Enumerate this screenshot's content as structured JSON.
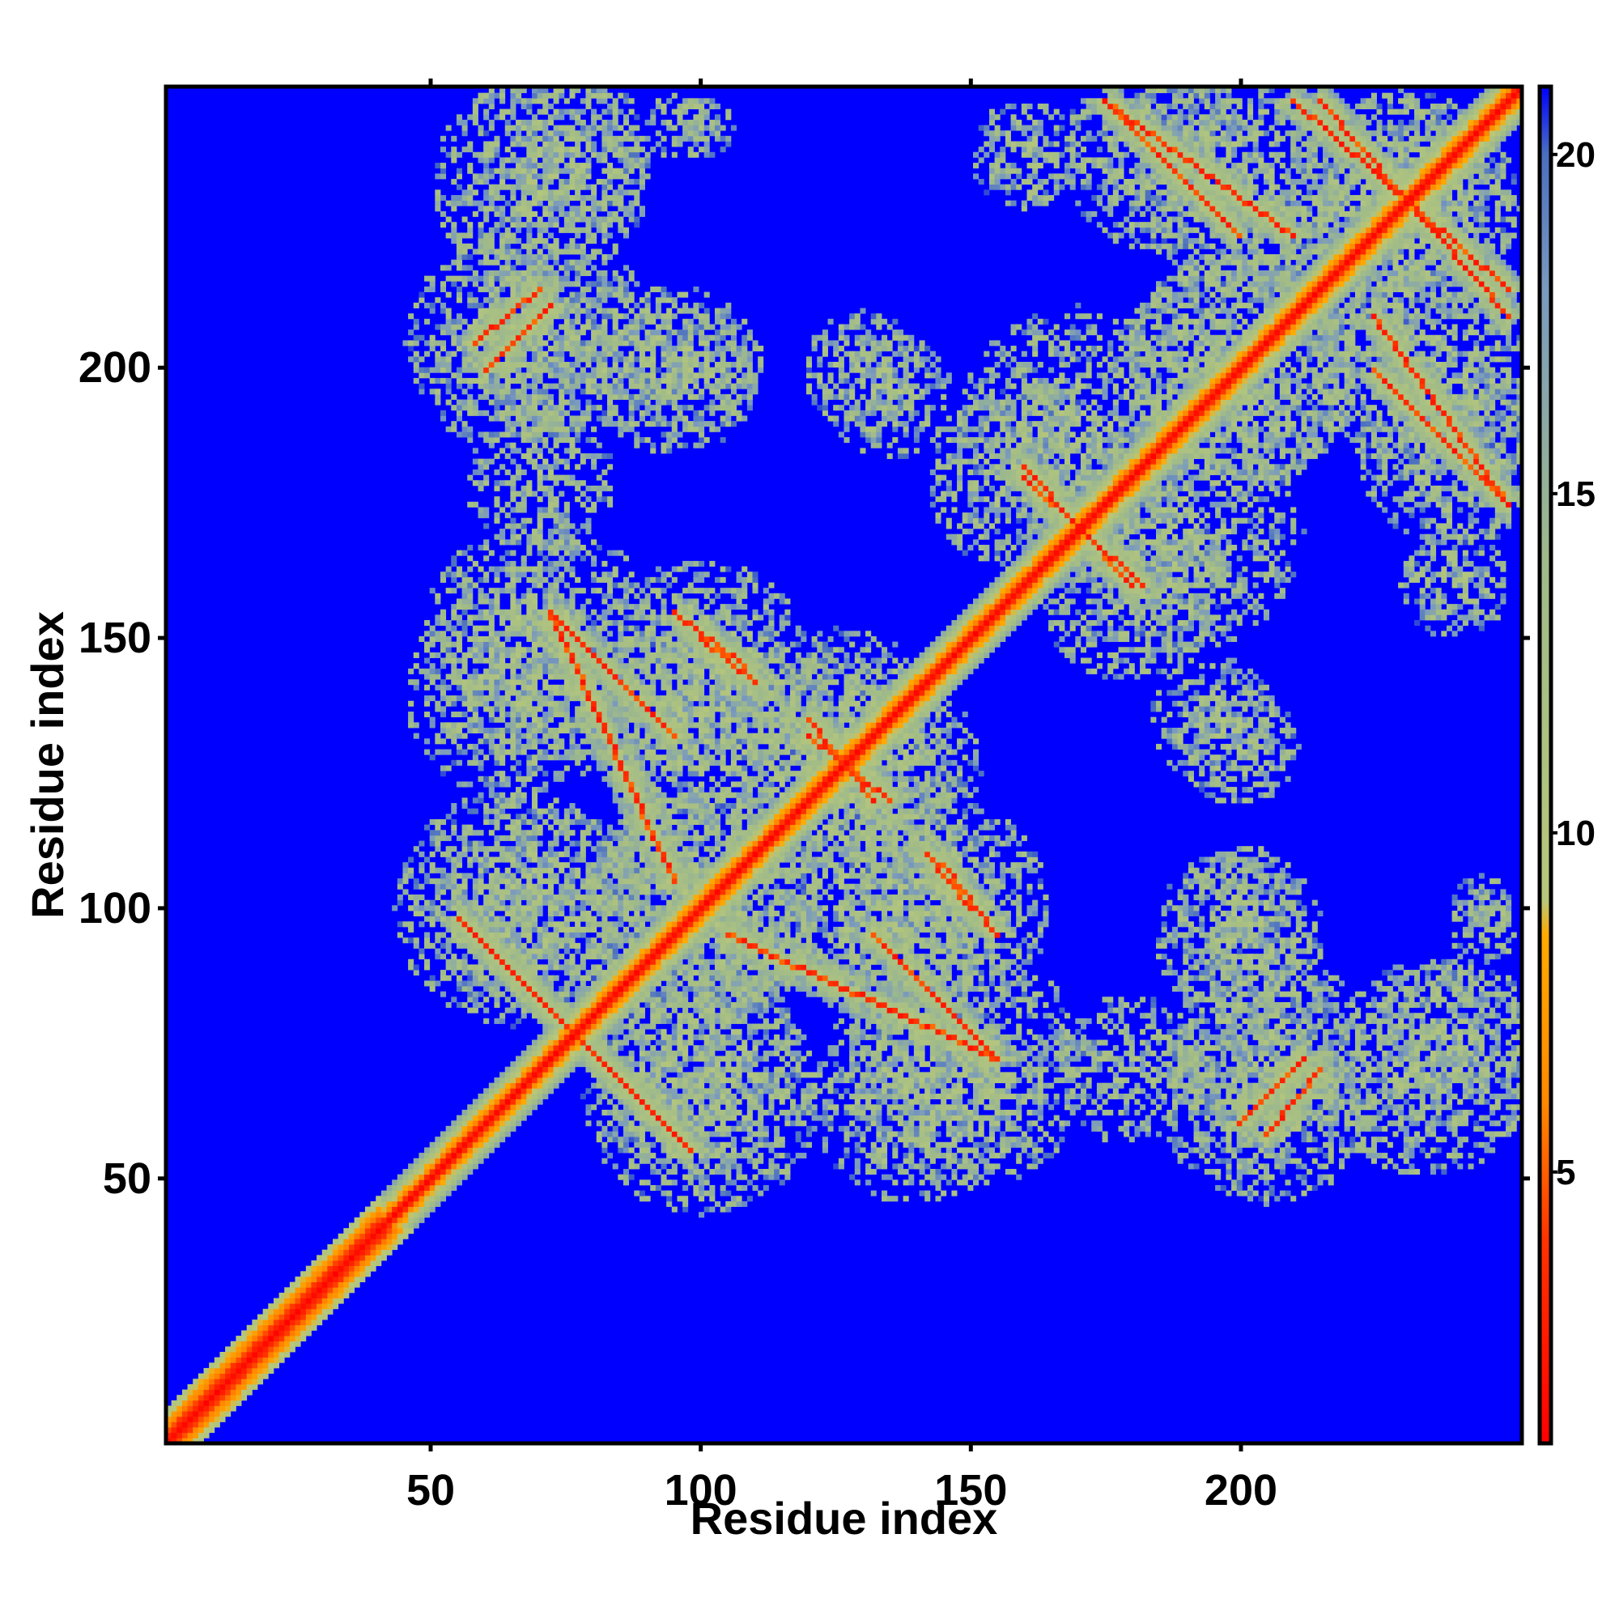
{
  "chart_data": {
    "type": "heatmap",
    "title": "",
    "xlabel": "Residue index",
    "ylabel": "Residue index",
    "n_residues": 252,
    "xlim": [
      1,
      252
    ],
    "ylim": [
      1,
      252
    ],
    "xticks": [
      50,
      100,
      150,
      200
    ],
    "yticks": [
      50,
      100,
      150,
      200
    ],
    "colorbar": {
      "range": [
        1,
        21
      ],
      "ticks": [
        5,
        10,
        15,
        20
      ],
      "stops": [
        {
          "value": 1,
          "color": "#ff0000"
        },
        {
          "value": 4,
          "color": "#ff3300"
        },
        {
          "value": 6,
          "color": "#ff8800"
        },
        {
          "value": 8.5,
          "color": "#ffaa00"
        },
        {
          "value": 9,
          "color": "#b8c87a"
        },
        {
          "value": 14,
          "color": "#9fba8a"
        },
        {
          "value": 18,
          "color": "#7a9abe"
        },
        {
          "value": 20,
          "color": "#4a6fbf"
        },
        {
          "value": 21,
          "color": "#0000ff"
        }
      ]
    },
    "background_color": "#0000ff",
    "diagonal_color": "#ff0000",
    "contact_bands": [
      {
        "i": [
          55,
          98
        ],
        "j": [
          98,
          55
        ],
        "label": "anti"
      },
      {
        "i": [
          72,
          95
        ],
        "j": [
          155,
          132
        ],
        "label": "anti"
      },
      {
        "i": [
          95,
          108
        ],
        "j": [
          155,
          145
        ],
        "label": "anti"
      },
      {
        "i": [
          120,
          132
        ],
        "j": [
          135,
          120
        ],
        "label": "anti"
      },
      {
        "i": [
          105,
          155
        ],
        "j": [
          95,
          72
        ],
        "label": "anti"
      },
      {
        "i": [
          142,
          150
        ],
        "j": [
          110,
          100
        ],
        "label": "anti"
      },
      {
        "i": [
          58,
          70
        ],
        "j": [
          205,
          215
        ],
        "label": "par"
      },
      {
        "i": [
          160,
          182
        ],
        "j": [
          180,
          160
        ],
        "label": "anti"
      },
      {
        "i": [
          175,
          200
        ],
        "j": [
          250,
          225
        ],
        "label": "anti"
      },
      {
        "i": [
          210,
          250
        ],
        "j": [
          250,
          215
        ],
        "label": "anti"
      },
      {
        "i": [
          200,
          212
        ],
        "j": [
          60,
          72
        ],
        "label": "par"
      },
      {
        "i": [
          225,
          250
        ],
        "j": [
          210,
          175
        ],
        "label": "anti"
      }
    ],
    "contact_clusters": [
      {
        "center": [
          75,
          205
        ],
        "radius": 18
      },
      {
        "center": [
          100,
          200
        ],
        "radius": 12
      },
      {
        "center": [
          130,
          200
        ],
        "radius": 11
      },
      {
        "center": [
          75,
          240
        ],
        "radius": 16
      },
      {
        "center": [
          100,
          245
        ],
        "radius": 6
      },
      {
        "center": [
          70,
          150
        ],
        "radius": 22
      },
      {
        "center": [
          100,
          145
        ],
        "radius": 20
      },
      {
        "center": [
          125,
          130
        ],
        "radius": 22
      },
      {
        "center": [
          70,
          100
        ],
        "radius": 20
      },
      {
        "center": [
          100,
          100
        ],
        "radius": 22
      },
      {
        "center": [
          135,
          100
        ],
        "radius": 20
      },
      {
        "center": [
          100,
          65
        ],
        "radius": 22
      },
      {
        "center": [
          140,
          65
        ],
        "radius": 20
      },
      {
        "center": [
          170,
          190
        ],
        "radius": 22
      },
      {
        "center": [
          200,
          200
        ],
        "radius": 22
      },
      {
        "center": [
          200,
          235
        ],
        "radius": 20
      },
      {
        "center": [
          230,
          230
        ],
        "radius": 22
      },
      {
        "center": [
          240,
          185
        ],
        "radius": 18
      },
      {
        "center": [
          180,
          160
        ],
        "radius": 18
      },
      {
        "center": [
          195,
          135
        ],
        "radius": 12
      },
      {
        "center": [
          200,
          95
        ],
        "radius": 16
      },
      {
        "center": [
          180,
          70
        ],
        "radius": 14
      },
      {
        "center": [
          205,
          65
        ],
        "radius": 20
      },
      {
        "center": [
          235,
          70
        ],
        "radius": 20
      },
      {
        "center": [
          240,
          160
        ],
        "radius": 10
      },
      {
        "center": [
          245,
          95
        ],
        "radius": 6
      }
    ]
  }
}
